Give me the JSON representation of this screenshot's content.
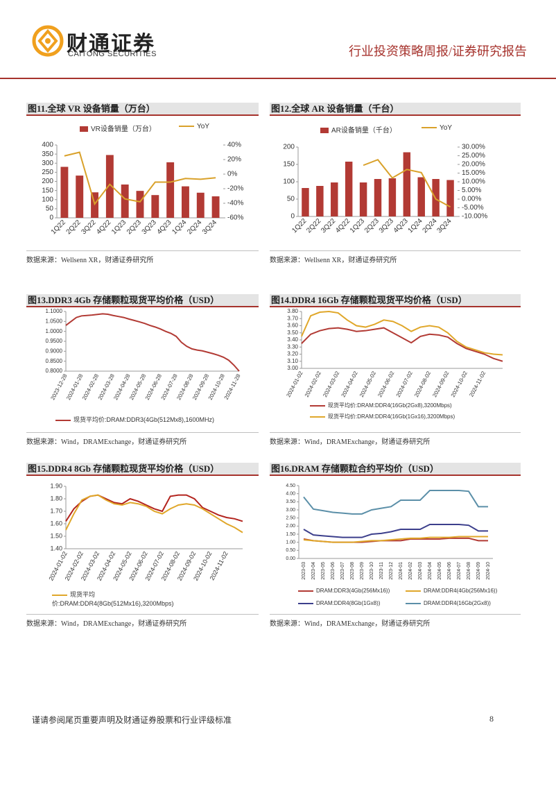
{
  "header": {
    "logo_cn": "财通证券",
    "logo_en": "CAITONG SECURITIES",
    "report_type": "行业投资策略周报/证券研究报告"
  },
  "chart_data": [
    {
      "type": "bar",
      "title": "图11.全球 VR 设备销量（万台）",
      "source": "数据来源：Wellsenn XR，财通证券研究所",
      "categories": [
        "1Q22",
        "2Q22",
        "3Q22",
        "4Q22",
        "1Q23",
        "2Q23",
        "3Q23",
        "4Q23",
        "1Q24",
        "2Q24",
        "3Q24"
      ],
      "series": [
        {
          "name": "VR设备销量（万台）",
          "color": "#b23a34",
          "values": [
            280,
            232,
            140,
            345,
            183,
            148,
            125,
            305,
            173,
            138,
            118
          ]
        },
        {
          "name": "YoY",
          "color": "#d9a12a",
          "type": "line",
          "axis": "y2",
          "values": [
            25,
            30,
            -41,
            -14,
            -34,
            -38,
            -11,
            -11,
            -6,
            -7,
            -5
          ]
        }
      ],
      "ylim": [
        0,
        400
      ],
      "yticks": [
        0,
        50,
        100,
        150,
        200,
        250,
        300,
        350,
        400
      ],
      "y2lim": [
        -60,
        40
      ],
      "y2ticks": [
        {
          "value": -60,
          "label": "-60%"
        },
        {
          "value": -40,
          "label": "-40%"
        },
        {
          "value": -20,
          "label": "-20%"
        },
        {
          "value": 0,
          "label": "0%"
        },
        {
          "value": 20,
          "label": "20%"
        },
        {
          "value": 40,
          "label": "40%"
        }
      ],
      "legend": "top",
      "grid": false
    },
    {
      "type": "bar",
      "title": "图12.全球 AR 设备销量（千台）",
      "source": "数据来源：Wellsenn XR，财通证券研究所",
      "categories": [
        "1Q22",
        "2Q22",
        "3Q22",
        "4Q22",
        "1Q23",
        "2Q23",
        "3Q23",
        "4Q23",
        "1Q24",
        "2Q24",
        "3Q24"
      ],
      "series": [
        {
          "name": "AR设备销量（千台）",
          "color": "#b23a34",
          "values": [
            82,
            88,
            98,
            158,
            98,
            108,
            110,
            185,
            113,
            108,
            105
          ]
        },
        {
          "name": "YoY",
          "color": "#d9a12a",
          "type": "line",
          "axis": "y2",
          "values": [
            null,
            null,
            null,
            null,
            19.5,
            22.7,
            12.2,
            17.1,
            15.3,
            0,
            -4.5
          ]
        }
      ],
      "ylim": [
        0,
        200
      ],
      "yticks": [
        0,
        50,
        100,
        150,
        200
      ],
      "y2lim": [
        -10,
        30
      ],
      "y2ticks": [
        {
          "value": -10,
          "label": "-10.00%"
        },
        {
          "value": -5,
          "label": "-5.00%"
        },
        {
          "value": 0,
          "label": "0.00%"
        },
        {
          "value": 5,
          "label": "5.00%"
        },
        {
          "value": 10,
          "label": "10.00%"
        },
        {
          "value": 15,
          "label": "15.00%"
        },
        {
          "value": 20,
          "label": "20.00%"
        },
        {
          "value": 25,
          "label": "25.00%"
        },
        {
          "value": 30,
          "label": "30.00%"
        }
      ],
      "legend": "top",
      "grid": false
    },
    {
      "type": "line",
      "title": "图13.DDR3 4Gb 存储颗粒现货平均价格（USD）",
      "source": "数据来源：Wind，DRAMExchange，财通证券研究所",
      "categories": [
        "2023-12-28",
        null,
        null,
        "2024-01-28",
        null,
        null,
        "2024-02-28",
        null,
        null,
        "2024-03-28",
        null,
        null,
        "2024-04-28",
        null,
        null,
        "2024-05-28",
        null,
        null,
        "2024-06-28",
        null,
        null,
        "2024-07-28",
        null,
        null,
        "2024-08-28",
        null,
        null,
        "2024-09-28",
        null,
        null,
        "2024-10-28",
        null,
        null,
        "2024-11-28"
      ],
      "series": [
        {
          "name": "现货平均价:DRAM:DDR3(4Gb(512Mx8),1600MHz)",
          "color": "#b23a34",
          "values": [
            1.03,
            1.05,
            1.07,
            1.078,
            1.08,
            1.082,
            1.085,
            1.088,
            1.086,
            1.08,
            1.075,
            1.07,
            1.062,
            1.055,
            1.048,
            1.04,
            1.03,
            1.022,
            1.012,
            1.0,
            0.99,
            0.975,
            0.945,
            0.925,
            0.912,
            0.906,
            0.902,
            0.895,
            0.888,
            0.88,
            0.87,
            0.855,
            0.83,
            0.8
          ]
        }
      ],
      "ylim": [
        0.8,
        1.1
      ],
      "yticks": [
        {
          "value": 0.8,
          "label": "0.8000"
        },
        {
          "value": 0.85,
          "label": "0.8500"
        },
        {
          "value": 0.9,
          "label": "0.9000"
        },
        {
          "value": 0.95,
          "label": "0.9500"
        },
        {
          "value": 1,
          "label": "1.0000"
        },
        {
          "value": 1.05,
          "label": "1.0500"
        },
        {
          "value": 1.1,
          "label": "1.1000"
        }
      ],
      "legend": "bottom",
      "grid": false
    },
    {
      "type": "line",
      "title": "图14.DDR4 16Gb 存储颗粒现货平均价格（USD）",
      "source": "数据来源：Wind，DRAMExchange，财通证券研究所",
      "categories": [
        "2024-01-02",
        null,
        "2024-02-02",
        null,
        "2024-03-02",
        null,
        "2024-04-02",
        null,
        "2024-05-02",
        null,
        "2024-06-02",
        null,
        "2024-07-02",
        null,
        "2024-08-02",
        null,
        "2024-09-02",
        null,
        "2024-10-02",
        null,
        "2024-11-02",
        null,
        null
      ],
      "series": [
        {
          "name": "现货平均价:DRAM:DDR4(16Gb(2Gx8),3200Mbps)",
          "color": "#b23a34",
          "values": [
            3.35,
            3.48,
            3.53,
            3.56,
            3.57,
            3.55,
            3.52,
            3.53,
            3.55,
            3.57,
            3.5,
            3.43,
            3.36,
            3.45,
            3.48,
            3.47,
            3.44,
            3.35,
            3.28,
            3.24,
            3.2,
            3.14,
            3.1
          ]
        },
        {
          "name": "现货平均价:DRAM:DDR4(16Gb(1Gx16),3200Mbps)",
          "color": "#e0a72a",
          "values": [
            3.45,
            3.74,
            3.79,
            3.8,
            3.78,
            3.68,
            3.6,
            3.58,
            3.62,
            3.68,
            3.66,
            3.6,
            3.52,
            3.58,
            3.6,
            3.58,
            3.5,
            3.38,
            3.3,
            3.26,
            3.22,
            3.2,
            3.19
          ]
        }
      ],
      "ylim": [
        3.0,
        3.8
      ],
      "yticks": [
        {
          "value": 3,
          "label": "3.00"
        },
        {
          "value": 3.1,
          "label": "3.10"
        },
        {
          "value": 3.2,
          "label": "3.20"
        },
        {
          "value": 3.3,
          "label": "3.30"
        },
        {
          "value": 3.4,
          "label": "3.40"
        },
        {
          "value": 3.5,
          "label": "3.50"
        },
        {
          "value": 3.6,
          "label": "3.60"
        },
        {
          "value": 3.7,
          "label": "3.70"
        },
        {
          "value": 3.8,
          "label": "3.80"
        }
      ],
      "legend": "bottom",
      "grid": false
    },
    {
      "type": "line",
      "title": "图15.DDR4 8Gb 存储颗粒现货平均价格（USD）",
      "source": "数据来源：Wind，DRAMExchange，财通证券研究所",
      "categories": [
        "2024-01-02",
        null,
        "2024-02-02",
        null,
        "2024-03-02",
        null,
        "2024-04-02",
        null,
        "2024-05-02",
        null,
        "2024-06-02",
        null,
        "2024-07-02",
        null,
        "2024-08-02",
        null,
        "2024-09-02",
        null,
        "2024-10-02",
        null,
        "2024-11-02",
        null,
        null
      ],
      "series": [
        {
          "color": "#b3241e",
          "values": [
            1.62,
            1.72,
            1.78,
            1.82,
            1.83,
            1.8,
            1.77,
            1.76,
            1.8,
            1.78,
            1.75,
            1.72,
            1.7,
            1.82,
            1.83,
            1.83,
            1.8,
            1.73,
            1.7,
            1.67,
            1.65,
            1.64,
            1.62
          ]
        },
        {
          "name": "现货平均价:DRAM:DDR4(8Gb(512Mx16),3200Mbps)",
          "color": "#e0a72a",
          "values": [
            1.55,
            1.68,
            1.79,
            1.82,
            1.83,
            1.79,
            1.76,
            1.75,
            1.77,
            1.76,
            1.74,
            1.7,
            1.68,
            1.72,
            1.75,
            1.76,
            1.75,
            1.72,
            1.68,
            1.64,
            1.6,
            1.57,
            1.53
          ]
        }
      ],
      "ylim": [
        1.4,
        1.9
      ],
      "yticks": [
        {
          "value": 1.4,
          "label": "1.40"
        },
        {
          "value": 1.5,
          "label": "1.50"
        },
        {
          "value": 1.6,
          "label": "1.60"
        },
        {
          "value": 1.7,
          "label": "1.70"
        },
        {
          "value": 1.8,
          "label": "1.80"
        },
        {
          "value": 1.9,
          "label": "1.90"
        }
      ],
      "legend": "bottom",
      "grid": false
    },
    {
      "type": "line",
      "title": "图16.DRAM 存储颗粒合约平均价（USD）",
      "source": "数据来源：Wind，DRAMExchange，财通证券研究所",
      "categories": [
        "2023-03",
        "2023-04",
        "2023-05",
        "2023-06",
        "2023-07",
        "2023-08",
        "2023-09",
        "2023-10",
        "2023-11",
        "2023-12",
        "2024-01",
        "2024-02",
        "2024-03",
        "2024-04",
        "2024-05",
        "2024-06",
        "2024-07",
        "2024-08",
        "2024-09",
        "2024-10"
      ],
      "series": [
        {
          "name": "DRAM:DDR3(4Gb(256Mx16))",
          "color": "#b23a34",
          "values": [
            1.2,
            1.1,
            1.05,
            1.0,
            1.0,
            1.0,
            1.0,
            1.05,
            1.1,
            1.1,
            1.1,
            1.2,
            1.2,
            1.2,
            1.2,
            1.25,
            1.25,
            1.25,
            1.1,
            1.1
          ]
        },
        {
          "name": "DRAM:DDR4(4Gb(256Mx16))",
          "color": "#e0a72a",
          "values": [
            1.15,
            1.1,
            1.05,
            1.0,
            1.0,
            1.0,
            1.05,
            1.1,
            1.1,
            1.15,
            1.2,
            1.25,
            1.25,
            1.3,
            1.3,
            1.3,
            1.35,
            1.35,
            1.35,
            1.35
          ]
        },
        {
          "name": "DRAM:DDR4(8Gb(1Gx8))",
          "color": "#3c3f8c",
          "values": [
            1.8,
            1.45,
            1.4,
            1.35,
            1.3,
            1.3,
            1.3,
            1.5,
            1.55,
            1.65,
            1.8,
            1.8,
            1.8,
            2.1,
            2.1,
            2.1,
            2.1,
            2.05,
            1.7,
            1.7
          ]
        },
        {
          "name": "DRAM:DDR4(16Gb(2Gx8))",
          "color": "#5b8fa8",
          "values": [
            3.8,
            3.05,
            2.95,
            2.85,
            2.8,
            2.75,
            2.75,
            3.0,
            3.1,
            3.2,
            3.6,
            3.6,
            3.6,
            4.2,
            4.2,
            4.2,
            4.2,
            4.15,
            3.2,
            3.2
          ]
        }
      ],
      "ylim": [
        0,
        4.5
      ],
      "yticks": [
        {
          "value": 0,
          "label": "0.00"
        },
        {
          "value": 0.5,
          "label": "0.50"
        },
        {
          "value": 1,
          "label": "1.00"
        },
        {
          "value": 1.5,
          "label": "1.50"
        },
        {
          "value": 2,
          "label": "2.00"
        },
        {
          "value": 2.5,
          "label": "2.50"
        },
        {
          "value": 3,
          "label": "3.00"
        },
        {
          "value": 3.5,
          "label": "3.50"
        },
        {
          "value": 4,
          "label": "4.00"
        },
        {
          "value": 4.5,
          "label": "4.50"
        }
      ],
      "legend": "bottom",
      "grid": false
    }
  ],
  "footer": {
    "disclaimer": "谨请参阅尾页重要声明及财通证券股票和行业评级标准",
    "page": 8
  }
}
